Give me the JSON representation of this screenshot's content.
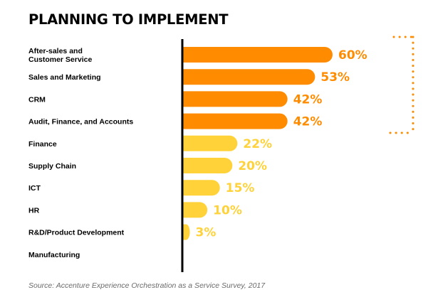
{
  "title": "PLANNING TO IMPLEMENT",
  "source": "Source: Accenture Experience Orchestration as a Service Survey, 2017",
  "colors": {
    "high": "#FF8C00",
    "low": "#FFD23A",
    "axis": "#000000",
    "bracket": "#FF8C00"
  },
  "chart_data": {
    "type": "bar",
    "orientation": "horizontal",
    "categories": [
      [
        "After-sales and",
        "Customer Service"
      ],
      [
        "Sales and Marketing"
      ],
      [
        "CRM"
      ],
      [
        "Audit, Finance, and Accounts"
      ],
      [
        "Finance"
      ],
      [
        "Supply Chain"
      ],
      [
        "ICT"
      ],
      [
        "HR"
      ],
      [
        "R&D/Product Development"
      ],
      [
        "Manufacturing"
      ]
    ],
    "values": [
      60,
      53,
      42,
      42,
      22,
      20,
      15,
      10,
      3,
      null
    ],
    "value_labels": [
      "60%",
      "53%",
      "42%",
      "42%",
      "22%",
      "20%",
      "15%",
      "10%",
      "3%",
      ""
    ],
    "highlighted": [
      true,
      true,
      true,
      true,
      false,
      false,
      false,
      false,
      false,
      false
    ],
    "title": "PLANNING TO IMPLEMENT",
    "xlim": [
      0,
      60
    ],
    "grid": false,
    "legend": "none"
  }
}
